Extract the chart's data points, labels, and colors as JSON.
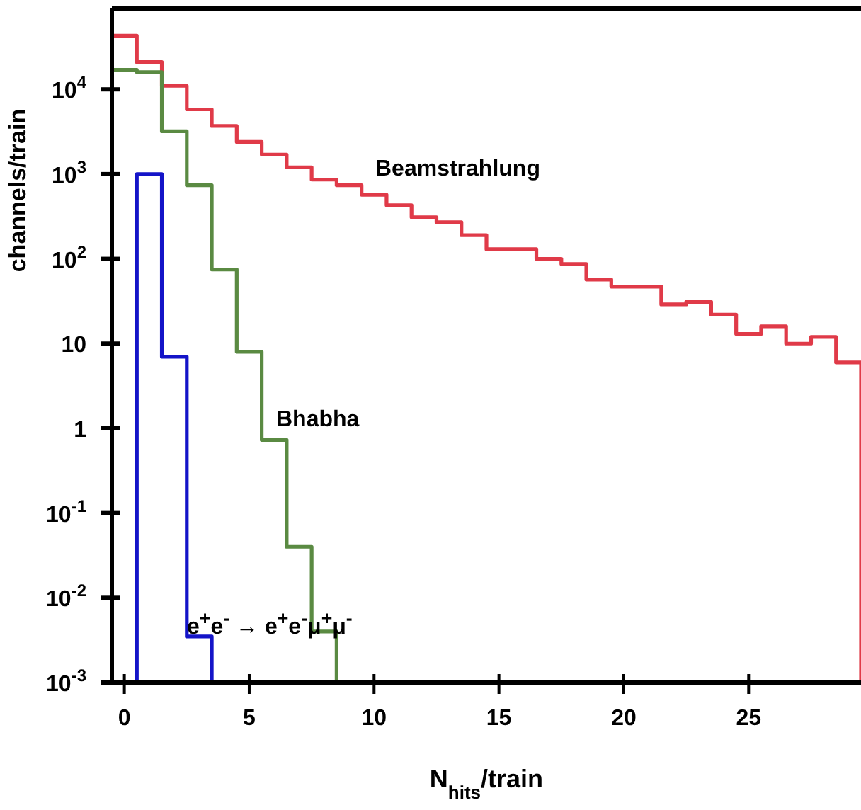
{
  "chart_data": {
    "type": "histogram",
    "xlabel": "N$_{hits}$/train",
    "ylabel": "channels/train",
    "bins": [
      -0.5,
      0.5,
      1.5,
      2.5,
      3.5,
      4.5,
      5.5,
      6.5,
      7.5,
      8.5,
      9.5,
      10.5,
      11.5,
      12.5,
      13.5,
      14.5,
      15.5,
      16.5,
      17.5,
      18.5,
      19.5,
      20.5,
      21.5,
      22.5,
      23.5,
      24.5,
      25.5,
      26.5,
      27.5,
      28.5,
      29.5
    ],
    "series": [
      {
        "color": "#e03a48",
        "values": [
          43000,
          21000,
          11000,
          5800,
          3700,
          2400,
          1700,
          1200,
          860,
          740,
          570,
          430,
          310,
          270,
          190,
          130,
          130,
          100,
          87,
          57,
          47,
          47,
          29,
          31,
          22,
          13,
          16,
          10,
          12,
          6
        ]
      },
      {
        "color": "#5a8a42",
        "bins": [
          -0.5,
          0.5,
          1.5,
          2.5,
          3.5,
          4.5,
          5.5,
          6.5,
          7.5,
          8.5
        ],
        "values": [
          17000,
          16000,
          3200,
          740,
          75,
          8,
          0.73,
          0.04,
          0.004
        ]
      },
      {
        "color": "#1414c8",
        "bins": [
          0.5,
          1.5,
          2.5,
          3.5
        ],
        "values": [
          1000,
          7,
          0.0035
        ]
      }
    ],
    "log": "y",
    "xlim": [
      -0.5,
      29.5
    ],
    "ylim": [
      0.001,
      90000
    ],
    "xticks": [
      0,
      5,
      10,
      15,
      20,
      25
    ],
    "yticks": [
      {
        "value": 0.001,
        "label": "10$^{-3}$"
      },
      {
        "value": 0.01,
        "label": "10$^{-2}$"
      },
      {
        "value": 0.1,
        "label": "10$^{-1}$"
      },
      {
        "value": 1,
        "label": "1"
      },
      {
        "value": 10,
        "label": "10"
      },
      {
        "value": 100,
        "label": "10$^{2}$"
      },
      {
        "value": 1000,
        "label": "10$^{3}$"
      },
      {
        "value": 10000,
        "label": "10$^{4}$"
      }
    ],
    "annotations": [
      "Beamstrahlung",
      "Bhabha",
      "e$^{+}$e$^{-}$ → e$^{+}$e$^{-}$μ$^{+}$μ$^{-}$"
    ]
  }
}
